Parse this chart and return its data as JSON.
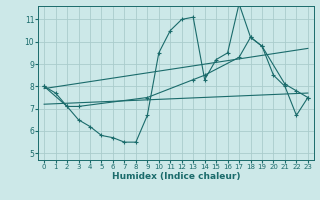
{
  "bg_color": "#cce8e8",
  "grid_color": "#aacccc",
  "line_color": "#1a6b6b",
  "xlabel": "Humidex (Indice chaleur)",
  "xlim": [
    -0.5,
    23.5
  ],
  "ylim": [
    4.7,
    11.6
  ],
  "yticks": [
    5,
    6,
    7,
    8,
    9,
    10,
    11
  ],
  "xticks": [
    0,
    1,
    2,
    3,
    4,
    5,
    6,
    7,
    8,
    9,
    10,
    11,
    12,
    13,
    14,
    15,
    16,
    17,
    18,
    19,
    20,
    21,
    22,
    23
  ],
  "lines": [
    {
      "x": [
        0,
        1,
        2,
        3,
        4,
        5,
        6,
        7,
        8,
        9,
        10,
        11,
        12,
        13,
        14,
        15,
        16,
        17,
        18,
        19,
        20,
        21,
        22,
        23
      ],
      "y": [
        8.0,
        7.7,
        7.1,
        6.5,
        6.2,
        5.8,
        5.7,
        5.5,
        5.5,
        6.7,
        9.5,
        10.5,
        11.0,
        11.1,
        8.3,
        9.2,
        9.5,
        11.7,
        10.2,
        9.8,
        8.5,
        8.0,
        6.7,
        7.5
      ],
      "has_markers": true
    },
    {
      "x": [
        0,
        2,
        3,
        9,
        13,
        14,
        17,
        18,
        19,
        21,
        22,
        23
      ],
      "y": [
        8.0,
        7.1,
        7.1,
        7.5,
        8.3,
        8.5,
        9.3,
        10.2,
        9.8,
        8.1,
        7.8,
        7.5
      ],
      "has_markers": true
    },
    {
      "x": [
        0,
        23
      ],
      "y": [
        7.9,
        9.7
      ],
      "has_markers": false
    },
    {
      "x": [
        0,
        23
      ],
      "y": [
        7.2,
        7.7
      ],
      "has_markers": false
    }
  ]
}
